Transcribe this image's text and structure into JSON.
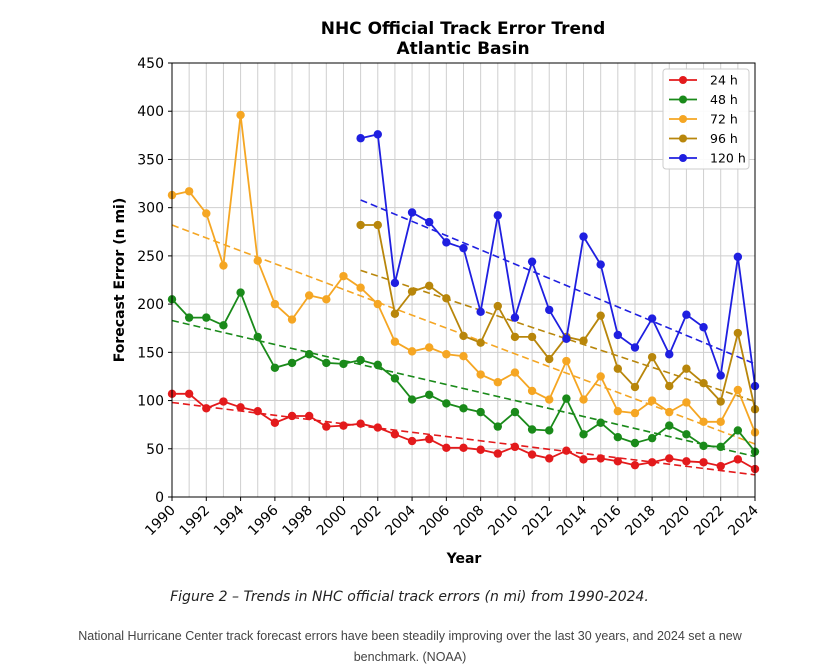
{
  "chart_data": {
    "type": "line",
    "title_line1": "NHC Official Track Error Trend",
    "title_line2": "Atlantic Basin",
    "xlabel": "Year",
    "ylabel": "Forecast Error (n mi)",
    "xlim": [
      1990,
      2024
    ],
    "ylim": [
      0,
      450
    ],
    "x_ticks": [
      "1990",
      "1992",
      "1994",
      "1996",
      "1998",
      "2000",
      "2002",
      "2004",
      "2006",
      "2008",
      "2010",
      "2012",
      "2014",
      "2016",
      "2018",
      "2020",
      "2022",
      "2024"
    ],
    "y_ticks": [
      "0",
      "50",
      "100",
      "150",
      "200",
      "250",
      "300",
      "350",
      "400",
      "450"
    ],
    "grid": true,
    "legend_position": "top-right",
    "series": [
      {
        "name": "24 h",
        "color": "#e31a1c",
        "x": [
          1990,
          1991,
          1992,
          1993,
          1994,
          1995,
          1996,
          1997,
          1998,
          1999,
          2000,
          2001,
          2002,
          2003,
          2004,
          2005,
          2006,
          2007,
          2008,
          2009,
          2010,
          2011,
          2012,
          2013,
          2014,
          2015,
          2016,
          2017,
          2018,
          2019,
          2020,
          2021,
          2022,
          2023,
          2024
        ],
        "values": [
          107,
          107,
          92,
          99,
          93,
          89,
          77,
          84,
          84,
          73,
          74,
          76,
          72,
          65,
          58,
          60,
          51,
          51,
          49,
          45,
          52,
          44,
          40,
          48,
          39,
          40,
          37,
          33,
          36,
          40,
          37,
          36,
          32,
          39,
          29
        ],
        "trend": [
          98,
          23
        ]
      },
      {
        "name": "48 h",
        "color": "#1a8a1a",
        "x": [
          1990,
          1991,
          1992,
          1993,
          1994,
          1995,
          1996,
          1997,
          1998,
          1999,
          2000,
          2001,
          2002,
          2003,
          2004,
          2005,
          2006,
          2007,
          2008,
          2009,
          2010,
          2011,
          2012,
          2013,
          2014,
          2015,
          2016,
          2017,
          2018,
          2019,
          2020,
          2021,
          2022,
          2023,
          2024
        ],
        "values": [
          205,
          186,
          186,
          178,
          212,
          166,
          134,
          139,
          148,
          139,
          138,
          142,
          137,
          123,
          101,
          106,
          97,
          92,
          88,
          73,
          88,
          70,
          69,
          102,
          65,
          77,
          62,
          56,
          61,
          74,
          65,
          53,
          52,
          69,
          47
        ],
        "trend": [
          183,
          42
        ]
      },
      {
        "name": "72 h",
        "color": "#f5a623",
        "x": [
          1990,
          1991,
          1992,
          1993,
          1994,
          1995,
          1996,
          1997,
          1998,
          1999,
          2000,
          2001,
          2002,
          2003,
          2004,
          2005,
          2006,
          2007,
          2008,
          2009,
          2010,
          2011,
          2012,
          2013,
          2014,
          2015,
          2016,
          2017,
          2018,
          2019,
          2020,
          2021,
          2022,
          2023,
          2024
        ],
        "values": [
          313,
          317,
          294,
          240,
          396,
          245,
          200,
          184,
          209,
          205,
          229,
          217,
          200,
          161,
          151,
          155,
          148,
          146,
          127,
          119,
          129,
          110,
          101,
          141,
          101,
          125,
          89,
          87,
          100,
          88,
          98,
          78,
          78,
          111,
          67
        ],
        "trend": [
          282,
          55
        ]
      },
      {
        "name": "96 h",
        "color": "#b8860b",
        "x": [
          2001,
          2002,
          2003,
          2004,
          2005,
          2006,
          2007,
          2008,
          2009,
          2010,
          2011,
          2012,
          2013,
          2014,
          2015,
          2016,
          2017,
          2018,
          2019,
          2020,
          2021,
          2022,
          2023,
          2024
        ],
        "values": [
          282,
          282,
          190,
          213,
          219,
          206,
          167,
          160,
          198,
          166,
          166,
          143,
          166,
          162,
          188,
          133,
          114,
          145,
          115,
          133,
          118,
          99,
          170,
          91
        ],
        "trend": [
          235,
          99
        ]
      },
      {
        "name": "120 h",
        "color": "#1f1fe0",
        "x": [
          2001,
          2002,
          2003,
          2004,
          2005,
          2006,
          2007,
          2008,
          2009,
          2010,
          2011,
          2012,
          2013,
          2014,
          2015,
          2016,
          2017,
          2018,
          2019,
          2020,
          2021,
          2022,
          2023,
          2024
        ],
        "values": [
          372,
          376,
          222,
          295,
          285,
          264,
          258,
          192,
          292,
          186,
          244,
          194,
          164,
          270,
          241,
          168,
          155,
          185,
          148,
          189,
          176,
          126,
          249,
          115
        ],
        "trend": [
          308,
          138
        ]
      }
    ]
  },
  "captions": {
    "figure": "Figure 2 – Trends in NHC official track errors (n mi) from 1990-2024.",
    "photo_line1": "National Hurricane Center track forecast errors have been steadily improving over the last 30 years, and 2024 set a new",
    "photo_line2": "benchmark. (NOAA)"
  }
}
